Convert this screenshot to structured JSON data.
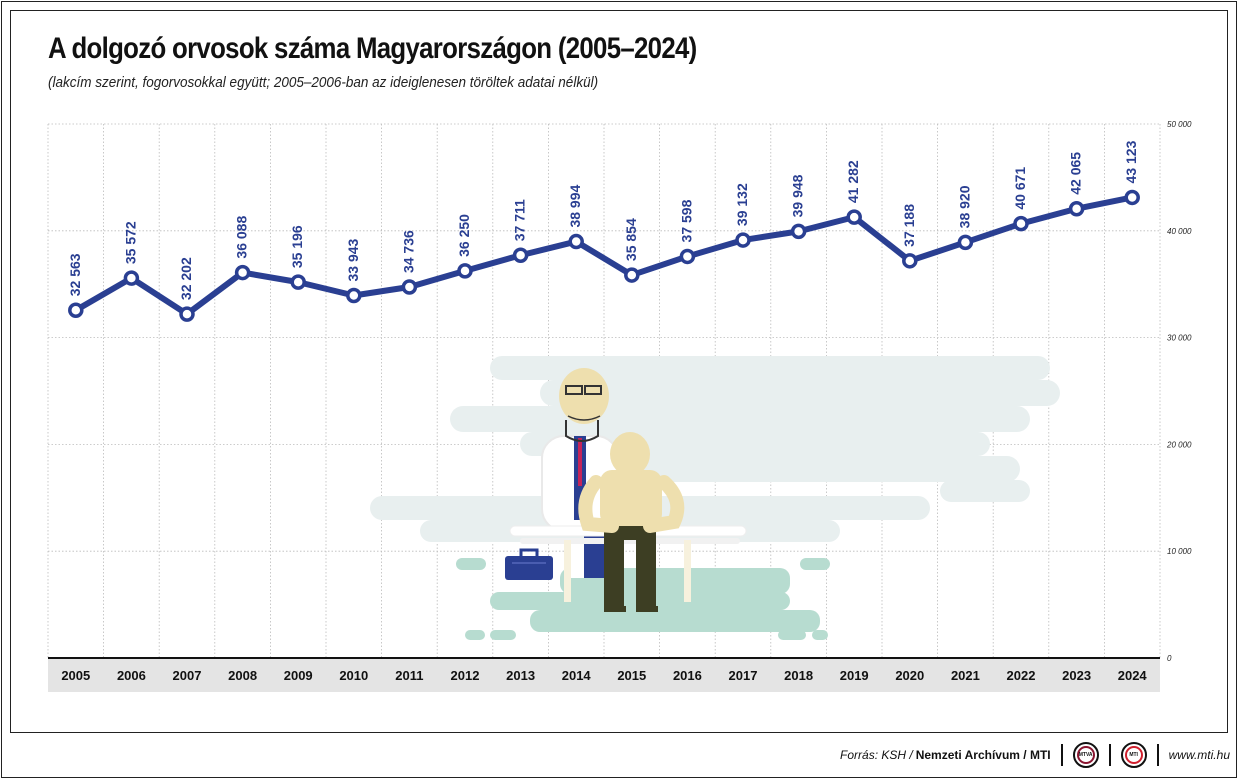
{
  "title": "A dolgozó orvosok száma Magyarországon (2005–2024)",
  "subtitle": "(lakcím szerint, fogorvosokkal együtt; 2005–2006-ban az ideiglenesen töröltek adatai nélkül)",
  "footer": {
    "source_prefix": "Forrás: KSH /",
    "source_bold": "Nemzeti Archívum / MTI",
    "logo1_text": "MTVA",
    "logo2_text": "MTI",
    "website": "www.mti.hu"
  },
  "colors": {
    "line": "#2a3f92",
    "label": "#2a3f92",
    "axis_band": "#e4e4e4",
    "grid": "#bbbbbb",
    "illustration_gray": "#e8efef",
    "illustration_green": "#b7dcd0"
  },
  "chart_data": {
    "type": "line",
    "title": "A dolgozó orvosok száma Magyarországon (2005–2024)",
    "subtitle": "(lakcím szerint, fogorvosokkal együtt; 2005–2006-ban az ideiglenesen töröltek adatai nélkül)",
    "xlabel": "",
    "ylabel": "",
    "ylim": [
      0,
      50000
    ],
    "y_ticks": [
      0,
      10000,
      20000,
      30000,
      40000,
      50000
    ],
    "y_tick_labels": [
      "0",
      "10 000",
      "20 000",
      "30 000",
      "40 000",
      "50 000"
    ],
    "y_axis_position": "right",
    "grid": true,
    "x": [
      "2005",
      "2006",
      "2007",
      "2008",
      "2009",
      "2010",
      "2011",
      "2012",
      "2013",
      "2014",
      "2015",
      "2016",
      "2017",
      "2018",
      "2019",
      "2020",
      "2021",
      "2022",
      "2023",
      "2024"
    ],
    "values": [
      32563,
      35572,
      32202,
      36088,
      35196,
      33943,
      34736,
      36250,
      37711,
      38994,
      35854,
      37598,
      39132,
      39948,
      41282,
      37188,
      38920,
      40671,
      42065,
      43123
    ],
    "value_labels": [
      "32 563",
      "35 572",
      "32 202",
      "36 088",
      "35 196",
      "33 943",
      "34 736",
      "36 250",
      "37 711",
      "38 994",
      "35 854",
      "37 598",
      "39 132",
      "39 948",
      "41 282",
      "37 188",
      "38 920",
      "40 671",
      "42 065",
      "43 123"
    ]
  }
}
